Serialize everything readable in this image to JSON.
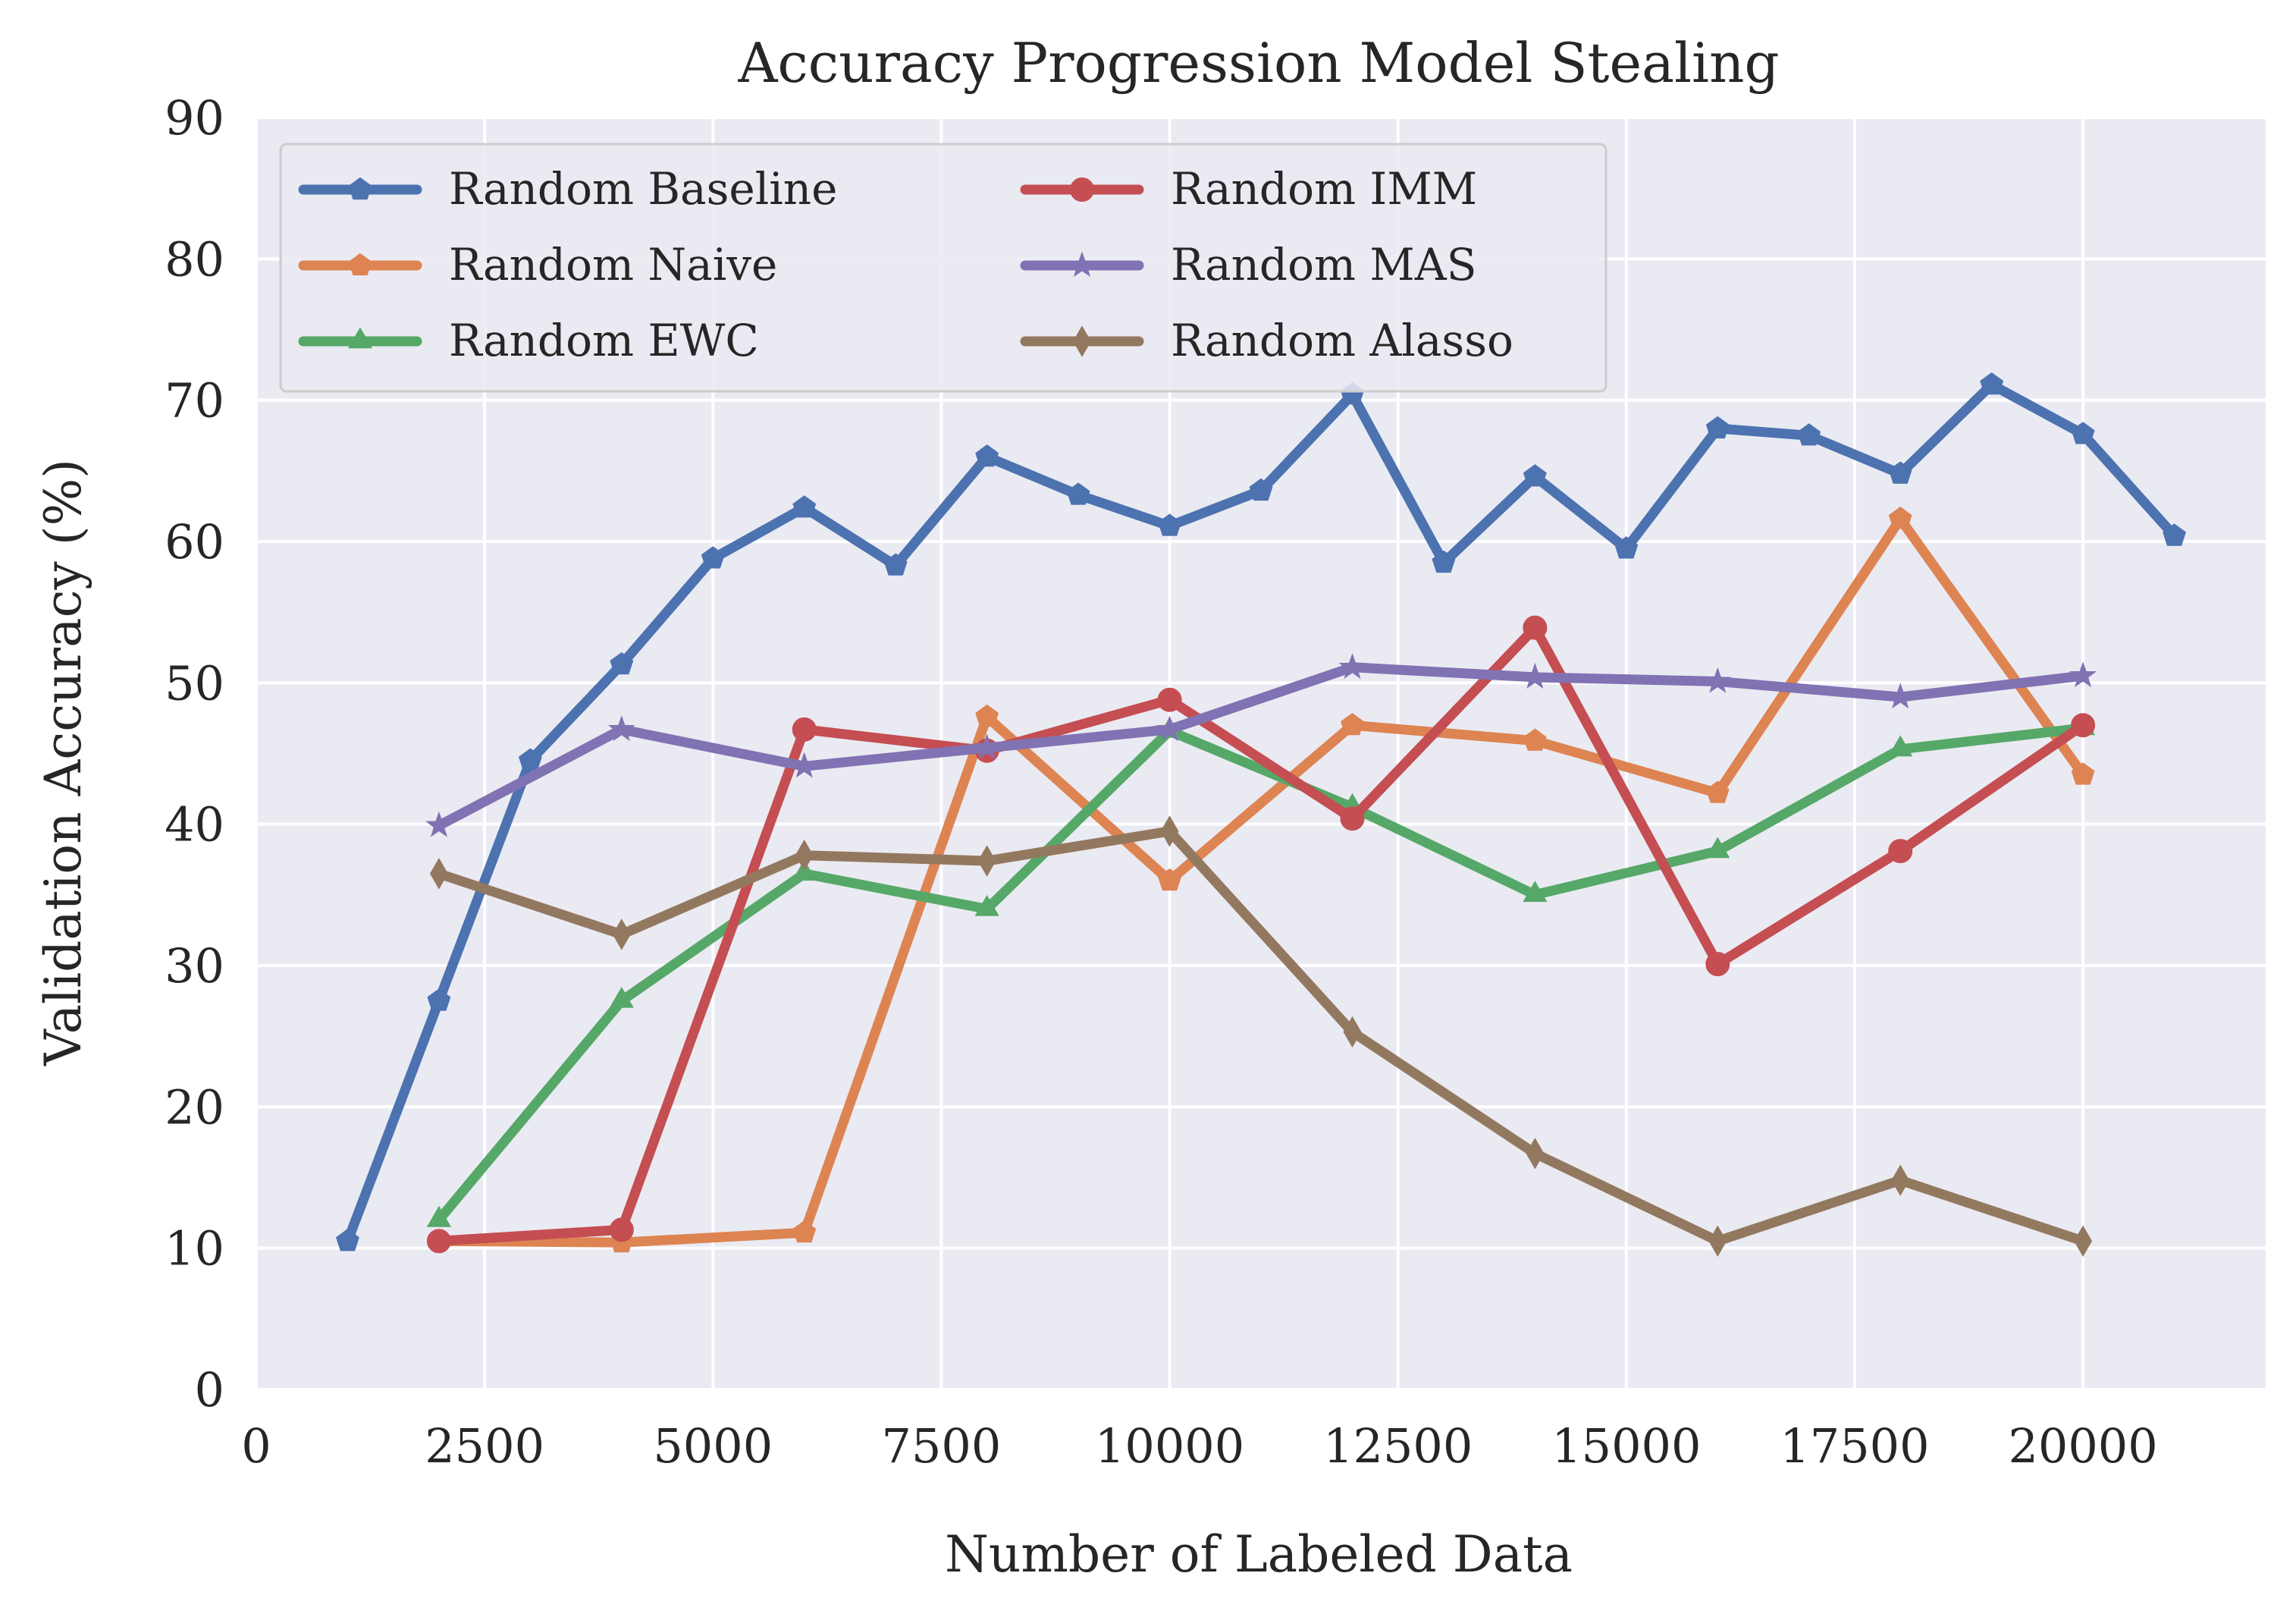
{
  "chart_data": {
    "type": "line",
    "title": "Accuracy Progression Model Stealing",
    "xlabel": "Number of Labeled Data",
    "ylabel": "Validation Accuracy (%)",
    "xlim": [
      0,
      22000
    ],
    "ylim": [
      0,
      90
    ],
    "xticks": [
      0,
      2500,
      5000,
      7500,
      10000,
      12500,
      15000,
      17500,
      20000
    ],
    "yticks": [
      0,
      10,
      20,
      30,
      40,
      50,
      60,
      70,
      80,
      90
    ],
    "grid": true,
    "legend_position": "top-left",
    "legend_columns": 2,
    "series": [
      {
        "name": "Random Baseline",
        "color": "#4c72b0",
        "marker": "pentagon",
        "x": [
          1000,
          2000,
          3000,
          4000,
          5000,
          6000,
          7000,
          8000,
          9000,
          10000,
          11000,
          12000,
          13000,
          14000,
          15000,
          16000,
          17000,
          18000,
          19000,
          20000,
          21000
        ],
        "y": [
          10.5,
          27.5,
          44.5,
          51.3,
          58.8,
          62.4,
          58.3,
          66.0,
          63.3,
          61.1,
          63.6,
          70.4,
          58.5,
          64.6,
          59.5,
          68.0,
          67.5,
          64.8,
          71.1,
          67.6,
          60.4
        ]
      },
      {
        "name": "Random Naive",
        "color": "#dd8452",
        "marker": "pentagon",
        "x": [
          2000,
          4000,
          6000,
          8000,
          10000,
          12000,
          14000,
          16000,
          18000,
          20000
        ],
        "y": [
          10.5,
          10.4,
          11.1,
          47.6,
          36.0,
          47.0,
          45.9,
          42.2,
          61.6,
          43.5
        ]
      },
      {
        "name": "Random EWC",
        "color": "#55a868",
        "marker": "triangle",
        "x": [
          2000,
          4000,
          6000,
          8000,
          10000,
          12000,
          14000,
          16000,
          18000,
          20000
        ],
        "y": [
          12.0,
          27.5,
          36.5,
          34.0,
          46.6,
          41.2,
          35.0,
          38.1,
          45.3,
          46.8
        ]
      },
      {
        "name": "Random IMM",
        "color": "#c44e52",
        "marker": "circle",
        "x": [
          2000,
          4000,
          6000,
          8000,
          10000,
          12000,
          14000,
          16000,
          18000,
          20000
        ],
        "y": [
          10.5,
          11.3,
          46.7,
          45.2,
          48.8,
          40.4,
          53.9,
          30.1,
          38.1,
          47.0
        ]
      },
      {
        "name": "Random MAS",
        "color": "#8172b3",
        "marker": "star",
        "x": [
          2000,
          4000,
          6000,
          8000,
          10000,
          12000,
          14000,
          16000,
          18000,
          20000
        ],
        "y": [
          39.9,
          46.7,
          44.1,
          45.4,
          46.7,
          51.1,
          50.4,
          50.1,
          49.0,
          50.5
        ]
      },
      {
        "name": "Random Alasso",
        "color": "#937860",
        "marker": "thin_diamond",
        "x": [
          2000,
          4000,
          6000,
          8000,
          10000,
          12000,
          14000,
          16000,
          18000,
          20000
        ],
        "y": [
          36.5,
          32.2,
          37.8,
          37.4,
          39.5,
          25.3,
          16.7,
          10.5,
          14.8,
          10.5
        ]
      }
    ]
  }
}
